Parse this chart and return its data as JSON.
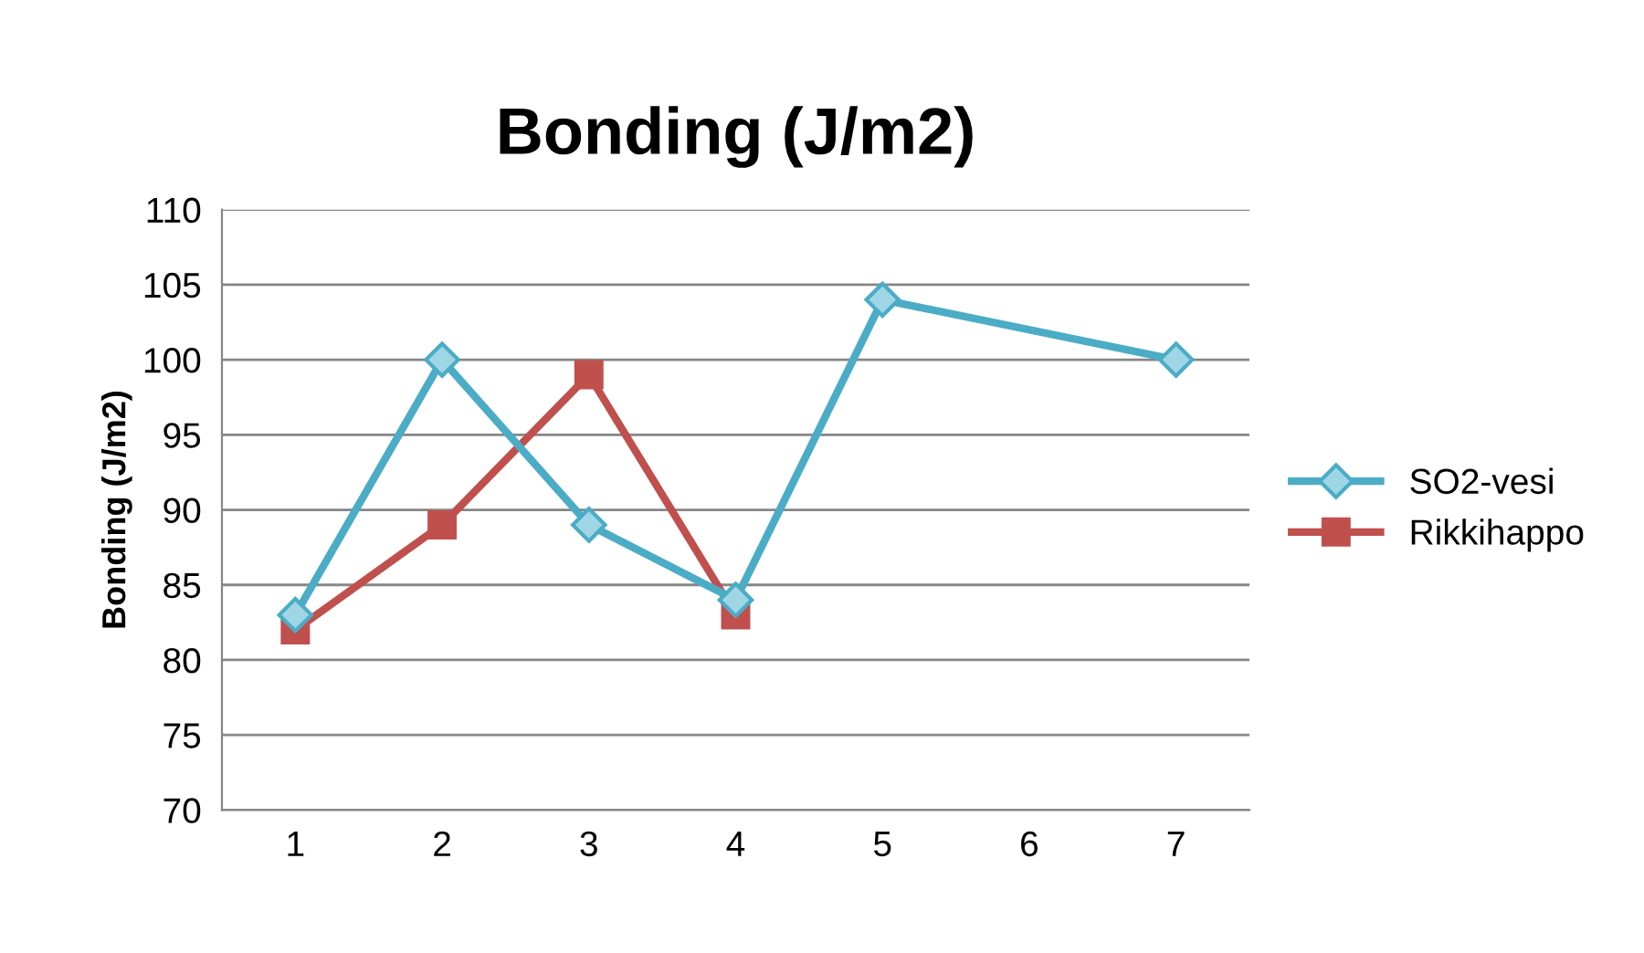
{
  "chart_data": {
    "type": "line",
    "title": "Bonding (J/m2)",
    "ylabel": "Bonding (J/m2)",
    "xlim": [
      0.5,
      7.5
    ],
    "xticks": [
      1,
      2,
      3,
      4,
      5,
      6,
      7
    ],
    "ylim": [
      70,
      110
    ],
    "yticks": [
      70,
      75,
      80,
      85,
      90,
      95,
      100,
      105,
      110
    ],
    "grid": "y",
    "legend": "right",
    "series": [
      {
        "name": "SO2-vesi",
        "color": "#4bacc6",
        "marker": "diamond",
        "x": [
          1,
          2,
          3,
          4,
          5,
          7
        ],
        "values": [
          83,
          100,
          89,
          84,
          104,
          100
        ]
      },
      {
        "name": "Rikkihappo",
        "color": "#c0504d",
        "marker": "square",
        "x": [
          1,
          2,
          3,
          4
        ],
        "values": [
          82,
          89,
          99,
          83
        ]
      }
    ]
  }
}
